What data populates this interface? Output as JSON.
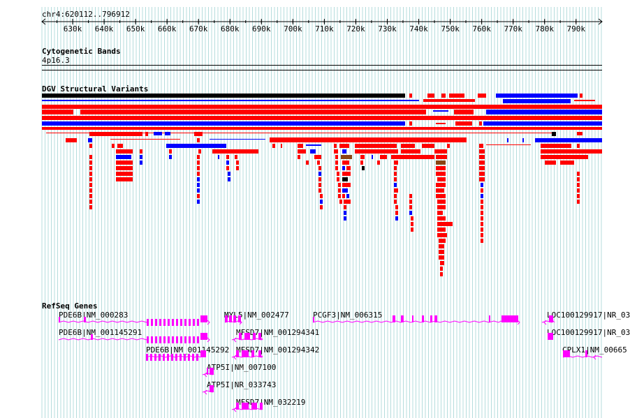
{
  "ruler": {
    "label": "chr4:620112..796912",
    "ticks": [
      "630k",
      "640k",
      "650k",
      "660k",
      "670k",
      "680k",
      "690k",
      "700k",
      "710k",
      "720k",
      "730k",
      "740k",
      "750k",
      "760k",
      "770k",
      "780k",
      "790k"
    ]
  },
  "tracks": {
    "cytoband": {
      "title": "Cytogenetic Bands",
      "band": "4p16.3"
    },
    "dgv": {
      "title": "DGV Structural Variants"
    },
    "refseq": {
      "title": "RefSeq Genes"
    }
  },
  "colors": {
    "gain": "#ff0000",
    "loss": "#0000ff",
    "both": "#000000",
    "inversion": "#8b4513",
    "gene": "#ff00ff",
    "grid": "#b4dcdc"
  },
  "genes": [
    "PDE6B|NM_000283",
    "PDE6B|NM_001145291",
    "PDE6B|NM_001145292",
    "MYL5|NM_002477",
    "MFSD7|NM_001294341",
    "MFSD7|NM_001294342",
    "ATP5I|NM_007100",
    "ATP5I|NR_033743",
    "MFSD7|NM_032219",
    "PCGF3|NM_006315",
    "LOC100129917|NR_03",
    "LOC100129917|NR_03",
    "CPLX1|NM_00665"
  ]
}
